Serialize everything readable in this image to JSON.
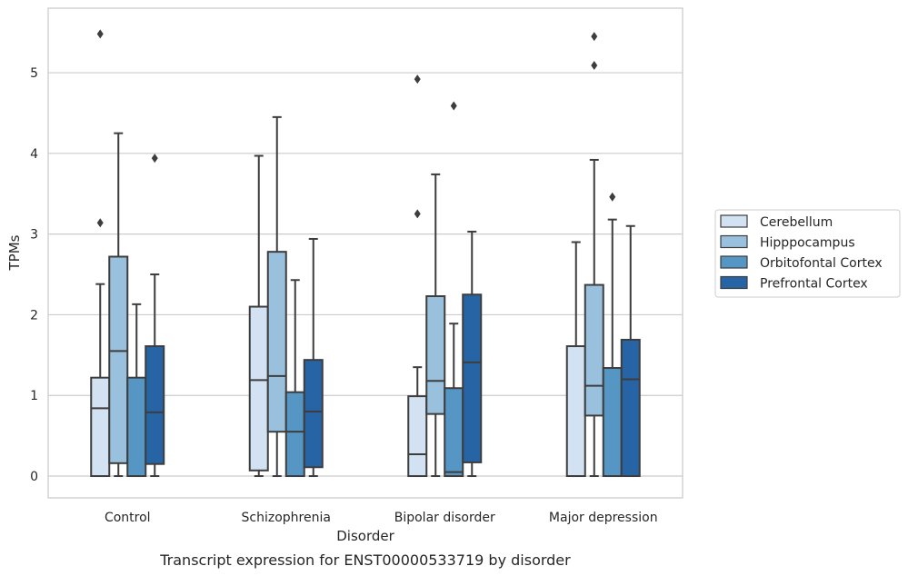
{
  "chart_data": {
    "type": "box",
    "title": "",
    "caption": "Transcript expression for ENST00000533719 by disorder",
    "xlabel": "Disorder",
    "ylabel": "TPMs",
    "ylim": [
      -0.27,
      5.8
    ],
    "yticks": [
      0,
      1,
      2,
      3,
      4,
      5
    ],
    "grid": "horizontal",
    "legend_position": "right",
    "categories": [
      "Control",
      "Schizophrenia",
      "Bipolar disorder",
      "Major depression"
    ],
    "series": [
      {
        "name": "Cerebellum",
        "color": "#d2e2f2",
        "boxes": [
          {
            "whislo": 0,
            "q1": 0,
            "med": 0.84,
            "q3": 1.22,
            "whishi": 2.38,
            "fliers": [
              3.14,
              5.48
            ]
          },
          {
            "whislo": 0,
            "q1": 0.07,
            "med": 1.19,
            "q3": 2.1,
            "whishi": 3.97,
            "fliers": []
          },
          {
            "whislo": 0,
            "q1": 0,
            "med": 0.27,
            "q3": 0.99,
            "whishi": 1.35,
            "fliers": [
              3.25,
              4.92
            ]
          },
          {
            "whislo": 0,
            "q1": 0,
            "med": 0,
            "q3": 1.61,
            "whishi": 2.9,
            "fliers": []
          }
        ]
      },
      {
        "name": "Hipppocampus",
        "color": "#99c0dc",
        "boxes": [
          {
            "whislo": 0,
            "q1": 0.16,
            "med": 1.55,
            "q3": 2.72,
            "whishi": 4.25,
            "fliers": []
          },
          {
            "whislo": 0,
            "q1": 0.55,
            "med": 1.24,
            "q3": 2.78,
            "whishi": 4.45,
            "fliers": []
          },
          {
            "whislo": 0,
            "q1": 0.77,
            "med": 1.18,
            "q3": 2.23,
            "whishi": 3.74,
            "fliers": []
          },
          {
            "whislo": 0,
            "q1": 0.75,
            "med": 1.12,
            "q3": 2.37,
            "whishi": 3.92,
            "fliers": [
              5.09,
              5.45
            ]
          }
        ]
      },
      {
        "name": "Orbitofontal Cortex",
        "color": "#5696c4",
        "boxes": [
          {
            "whislo": 0,
            "q1": 0,
            "med": 0,
            "q3": 1.22,
            "whishi": 2.13,
            "fliers": []
          },
          {
            "whislo": 0,
            "q1": 0,
            "med": 0.55,
            "q3": 1.04,
            "whishi": 2.43,
            "fliers": []
          },
          {
            "whislo": 0,
            "q1": 0,
            "med": 0.05,
            "q3": 1.09,
            "whishi": 1.89,
            "fliers": [
              4.59
            ]
          },
          {
            "whislo": 0,
            "q1": 0,
            "med": 0,
            "q3": 1.34,
            "whishi": 3.18,
            "fliers": [
              3.46
            ]
          }
        ]
      },
      {
        "name": "Prefrontal Cortex",
        "color": "#2664a6",
        "boxes": [
          {
            "whislo": 0,
            "q1": 0.15,
            "med": 0.79,
            "q3": 1.61,
            "whishi": 2.5,
            "fliers": [
              3.94
            ]
          },
          {
            "whislo": 0,
            "q1": 0.11,
            "med": 0.8,
            "q3": 1.44,
            "whishi": 2.94,
            "fliers": []
          },
          {
            "whislo": 0,
            "q1": 0.17,
            "med": 1.41,
            "q3": 2.25,
            "whishi": 3.03,
            "fliers": []
          },
          {
            "whislo": 0,
            "q1": 0,
            "med": 1.2,
            "q3": 1.69,
            "whishi": 3.1,
            "fliers": []
          }
        ]
      }
    ]
  }
}
